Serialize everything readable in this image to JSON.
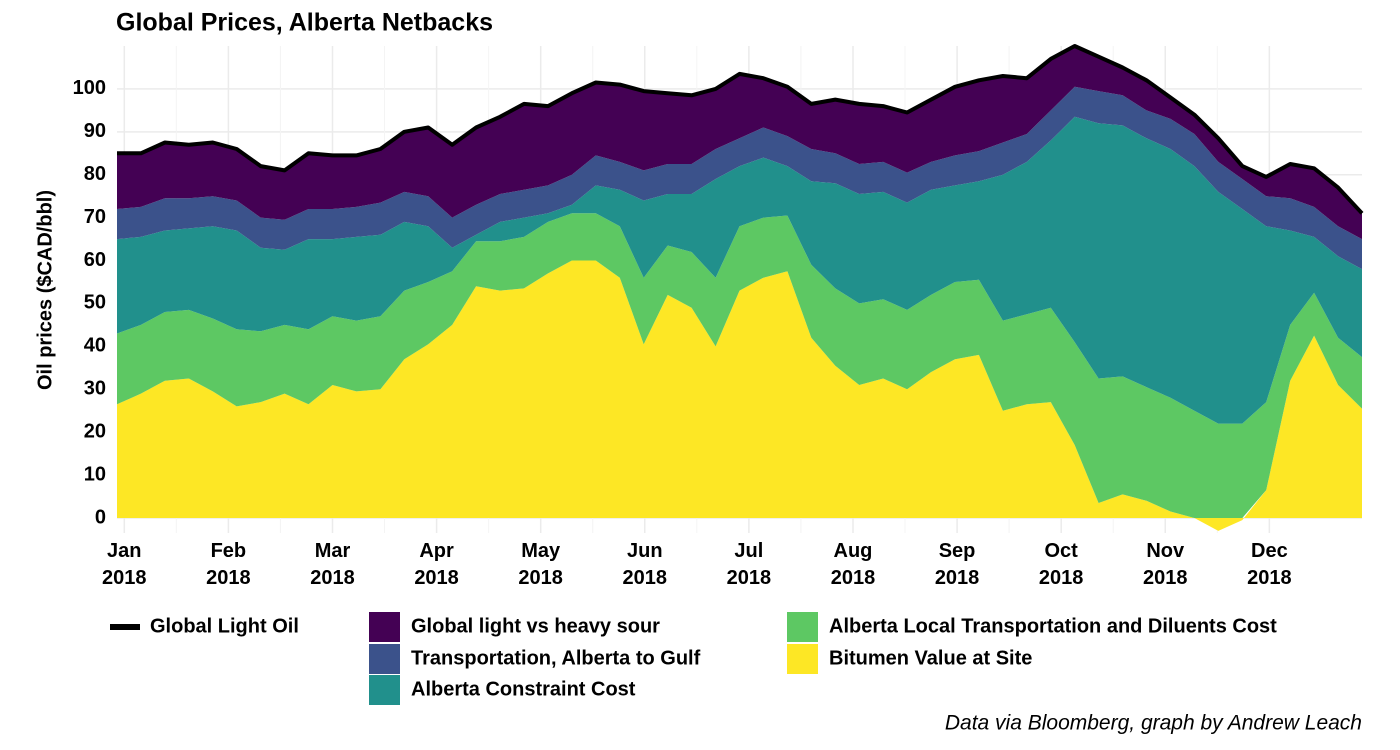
{
  "chart_data": {
    "type": "stacked-area",
    "title": "Global Prices, Alberta Netbacks",
    "y_label": "Oil prices ($CAD/bbl)",
    "caption": "Data via Bloomberg, graph by Andrew Leach",
    "x": [
      0.93,
      1.16,
      1.39,
      1.62,
      1.85,
      2.08,
      2.31,
      2.54,
      2.77,
      3.0,
      3.23,
      3.46,
      3.69,
      3.92,
      4.15,
      4.38,
      4.61,
      4.84,
      5.07,
      5.3,
      5.53,
      5.76,
      5.99,
      6.22,
      6.45,
      6.68,
      6.91,
      7.14,
      7.37,
      7.6,
      7.83,
      8.06,
      8.29,
      8.52,
      8.75,
      8.98,
      9.21,
      9.44,
      9.67,
      9.9,
      10.13,
      10.36,
      10.59,
      10.82,
      11.05,
      11.28,
      11.51,
      11.74,
      11.97,
      12.2,
      12.43,
      12.66,
      12.89
    ],
    "xlim": [
      0.93,
      12.89
    ],
    "xticks": [
      {
        "value": 1,
        "label": "Jan 2018"
      },
      {
        "value": 2,
        "label": "Feb 2018"
      },
      {
        "value": 3,
        "label": "Mar 2018"
      },
      {
        "value": 4,
        "label": "Apr 2018"
      },
      {
        "value": 5,
        "label": "May 2018"
      },
      {
        "value": 6,
        "label": "Jun 2018"
      },
      {
        "value": 7,
        "label": "Jul 2018"
      },
      {
        "value": 8,
        "label": "Aug 2018"
      },
      {
        "value": 9,
        "label": "Sep 2018"
      },
      {
        "value": 10,
        "label": "Oct 2018"
      },
      {
        "value": 11,
        "label": "Nov 2018"
      },
      {
        "value": 12,
        "label": "Dec 2018"
      }
    ],
    "ylim": [
      -3.5,
      110
    ],
    "yticks": [
      0,
      10,
      20,
      30,
      40,
      50,
      60,
      70,
      80,
      90,
      100
    ],
    "grid": true,
    "line_series": {
      "name": "Global Light Oil",
      "color": "#000000",
      "values": [
        85,
        85,
        87.5,
        87,
        87.5,
        86,
        82,
        81,
        85,
        84.5,
        84.5,
        86,
        90,
        91,
        87,
        91,
        93.5,
        96.5,
        96,
        99,
        101.5,
        101,
        99.5,
        99,
        98.5,
        100,
        103.5,
        102.5,
        100.5,
        96.5,
        97.5,
        96.5,
        96,
        94.5,
        97.5,
        100.5,
        102,
        103,
        102.5,
        107,
        110,
        107.5,
        105,
        102,
        98,
        94,
        88.5,
        82,
        79.5,
        82.5,
        81.5,
        77,
        71
      ]
    },
    "series": [
      {
        "name": "Global light vs heavy sour",
        "color": "#440154",
        "values": [
          13,
          12.5,
          13,
          12.5,
          12.5,
          12,
          12,
          11.5,
          13,
          12.5,
          12,
          12.5,
          14,
          16,
          17,
          18,
          18,
          20,
          18.5,
          19,
          17,
          18,
          18.5,
          16.5,
          16,
          14,
          15,
          11.5,
          11.5,
          10.5,
          12.5,
          14,
          13,
          14,
          14.5,
          16,
          16.5,
          15.5,
          13,
          12,
          9.5,
          8,
          6.5,
          7,
          5,
          4.5,
          5.5,
          3,
          4.5,
          8,
          9,
          9,
          6
        ]
      },
      {
        "name": "Transportation, Alberta to Gulf",
        "color": "#3b528b",
        "values": [
          7,
          7,
          7.5,
          7,
          7,
          7,
          7,
          7,
          7,
          7,
          7,
          7.5,
          7,
          7,
          7,
          7,
          6.5,
          6.5,
          6.5,
          7,
          7,
          6.5,
          7,
          7,
          7,
          7,
          6.5,
          7,
          7,
          7.5,
          7,
          7,
          7,
          7,
          6.5,
          7,
          7,
          7.5,
          6.5,
          7,
          7,
          7.5,
          7,
          6.5,
          7,
          7.5,
          7,
          7,
          7,
          7.5,
          7,
          7,
          7
        ]
      },
      {
        "name": "Alberta Constraint Cost",
        "color": "#21908c",
        "values": [
          22,
          20.5,
          19,
          19,
          21.5,
          23,
          19.5,
          17.5,
          21,
          18,
          19.5,
          19,
          16,
          13,
          5.5,
          1.5,
          4.5,
          4.5,
          2,
          2,
          6.5,
          8.5,
          18,
          12,
          13.5,
          23,
          14,
          14,
          11.5,
          19.5,
          24.5,
          25.5,
          25,
          25,
          24.5,
          22.5,
          23,
          34,
          35.5,
          39,
          52.5,
          59.5,
          58.5,
          58,
          58,
          57,
          54,
          50,
          41,
          22,
          13,
          19,
          20.5
        ]
      },
      {
        "name": "Alberta Local Transportation and Diluents Cost",
        "color": "#5dc863",
        "values": [
          16.5,
          16,
          16,
          16,
          17,
          18,
          16.5,
          16,
          17.5,
          16,
          16.5,
          17,
          16,
          14.5,
          12.5,
          10.5,
          11.5,
          12,
          12,
          11,
          11,
          12,
          15.5,
          11.5,
          13,
          16,
          15,
          14,
          13,
          17,
          18,
          19,
          18.5,
          18.5,
          18,
          18,
          17.5,
          21,
          21,
          22,
          24,
          29,
          27.5,
          26.5,
          26.5,
          25,
          22,
          22,
          20.5,
          13,
          10,
          11,
          12
        ]
      },
      {
        "name": "Bitumen Value at Site",
        "color": "#fde725",
        "values": [
          26.5,
          29,
          32,
          32.5,
          29.5,
          26,
          27,
          29,
          26.5,
          31,
          29.5,
          30,
          37,
          40.5,
          45,
          54,
          53,
          53.5,
          57,
          60,
          60,
          56,
          40.5,
          52,
          49,
          40,
          53,
          56,
          57.5,
          42,
          35.5,
          31,
          32.5,
          30,
          34,
          37,
          38,
          25,
          26.5,
          27,
          17,
          3.5,
          5.5,
          4,
          1.5,
          0,
          -3,
          -0.5,
          6.5,
          32,
          42.5,
          31,
          25.5
        ]
      }
    ]
  }
}
